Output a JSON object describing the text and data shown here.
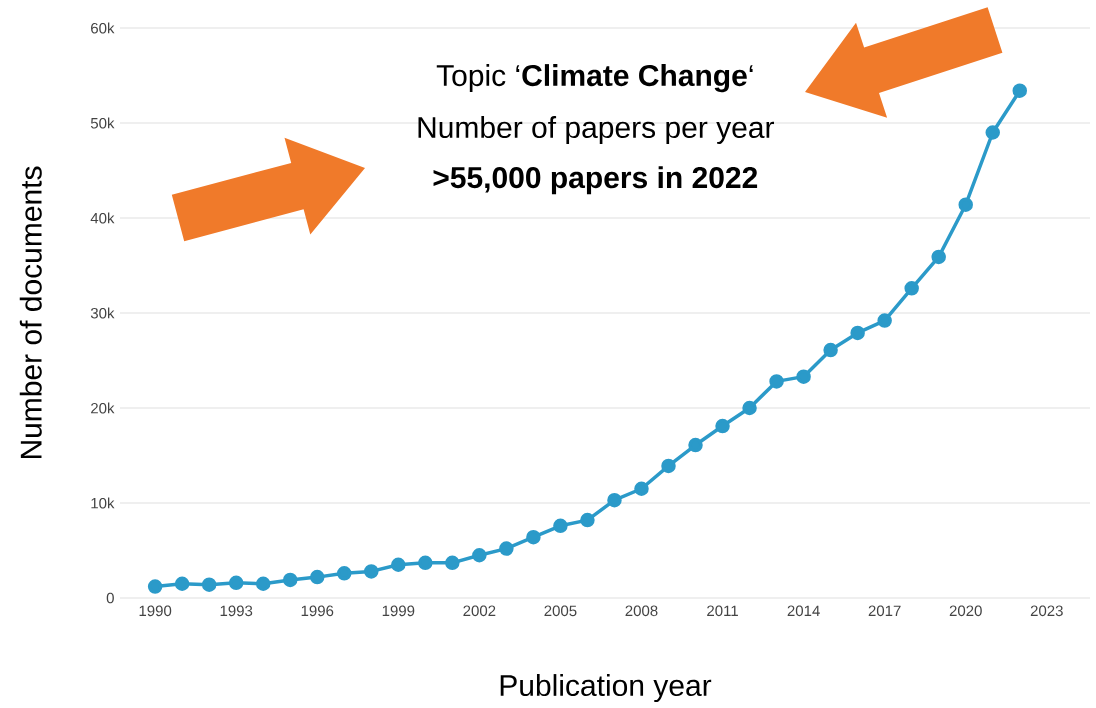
{
  "chart_data": {
    "type": "line",
    "title": "Topic ‘**Climate Change**‘",
    "subtitle": "Number of papers per year",
    "annotations": [
      ">55,000 papers in 2022"
    ],
    "xlabel": "Publication year",
    "ylabel": "Number of documents",
    "x": [
      1990,
      1991,
      1992,
      1993,
      1994,
      1995,
      1996,
      1997,
      1998,
      1999,
      2000,
      2001,
      2002,
      2003,
      2004,
      2005,
      2006,
      2007,
      2008,
      2009,
      2010,
      2011,
      2012,
      2013,
      2014,
      2015,
      2016,
      2017,
      2018,
      2019,
      2020,
      2021,
      2022
    ],
    "values": [
      1200,
      1500,
      1400,
      1600,
      1500,
      1900,
      2200,
      2600,
      2800,
      3500,
      3700,
      3700,
      4500,
      5200,
      6400,
      7600,
      8200,
      10300,
      11500,
      13900,
      16100,
      18100,
      20000,
      22800,
      23300,
      26100,
      27900,
      29200,
      32600,
      35900,
      41400,
      49000,
      53400
    ],
    "color": "#2b9ac9",
    "marker": "circle",
    "line_style": "solid",
    "grid": "y",
    "xlim": [
      1988.7,
      2024.6
    ],
    "ylim": [
      0,
      60000
    ],
    "xticks": [
      1990,
      1993,
      1996,
      1999,
      2002,
      2005,
      2008,
      2011,
      2014,
      2017,
      2020,
      2023
    ],
    "yticks": [
      0,
      {
        "value": 10000,
        "label": "10k"
      },
      {
        "value": 20000,
        "label": "20k"
      },
      {
        "value": 30000,
        "label": "30k"
      },
      {
        "value": 40000,
        "label": "40k"
      },
      {
        "value": 50000,
        "label": "50k"
      },
      {
        "value": 60000,
        "label": "60k"
      }
    ]
  }
}
